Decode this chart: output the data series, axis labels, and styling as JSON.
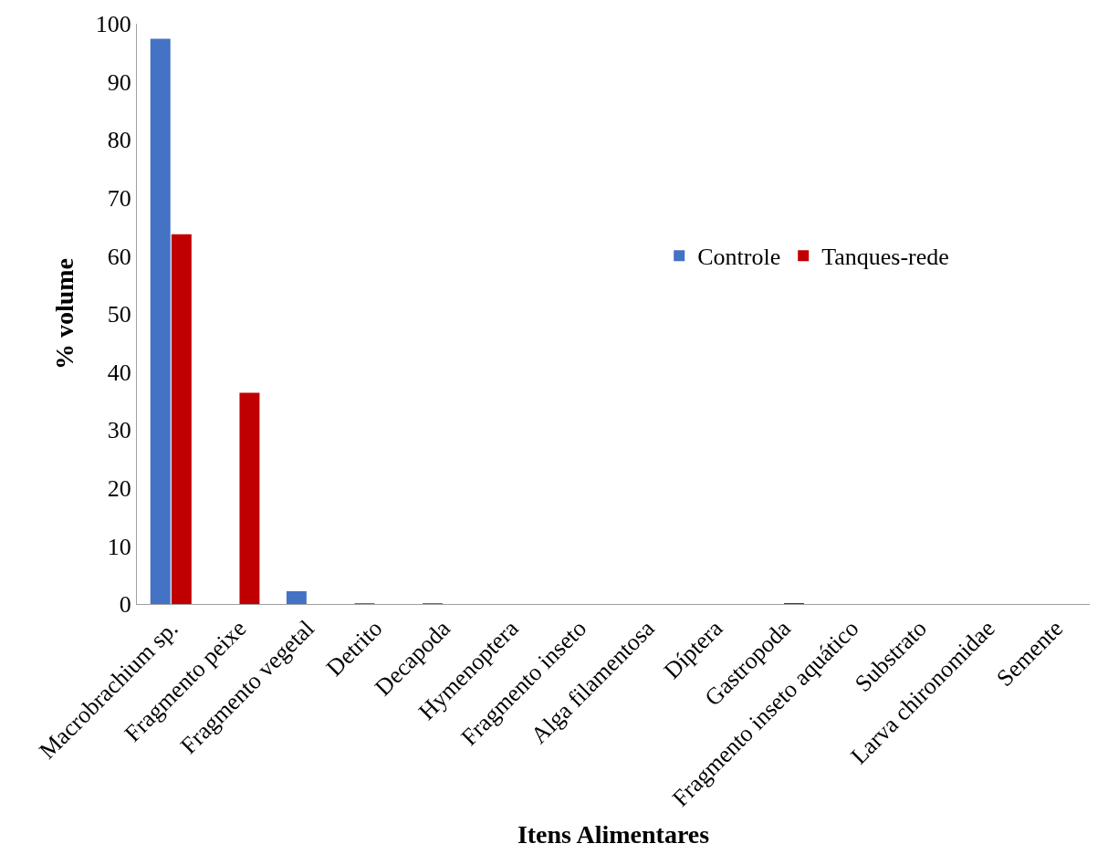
{
  "chart_data": {
    "type": "bar",
    "xlabel": "Itens Alimentares",
    "ylabel": "% volume",
    "categories": [
      "Macrobrachium sp.",
      "Fragmento peixe",
      "Fragmento vegetal",
      "Detrito",
      "Decapoda",
      "Hymenoptera",
      "Fragmento inseto",
      "Alga filamentosa",
      "Díptera",
      "Gastropoda",
      "Fragmento inseto aquático",
      "Substrato",
      "Larva chironomidae",
      "Semente"
    ],
    "series": [
      {
        "name": "Controle",
        "color": "#4472c4",
        "values": [
          97.4,
          0,
          2.2,
          0.1,
          0.1,
          0,
          0,
          0,
          0,
          0,
          0,
          0,
          0,
          0
        ]
      },
      {
        "name": "Tanques-rede",
        "color": "#c00000",
        "values": [
          63.7,
          36.4,
          0,
          0,
          0,
          0,
          0,
          0,
          0,
          0.1,
          0,
          0,
          0,
          0
        ]
      }
    ],
    "ylim": [
      0,
      100
    ],
    "yticks": [
      0,
      10,
      20,
      30,
      40,
      50,
      60,
      70,
      80,
      90,
      100
    ],
    "grid": false,
    "legend": "right"
  }
}
